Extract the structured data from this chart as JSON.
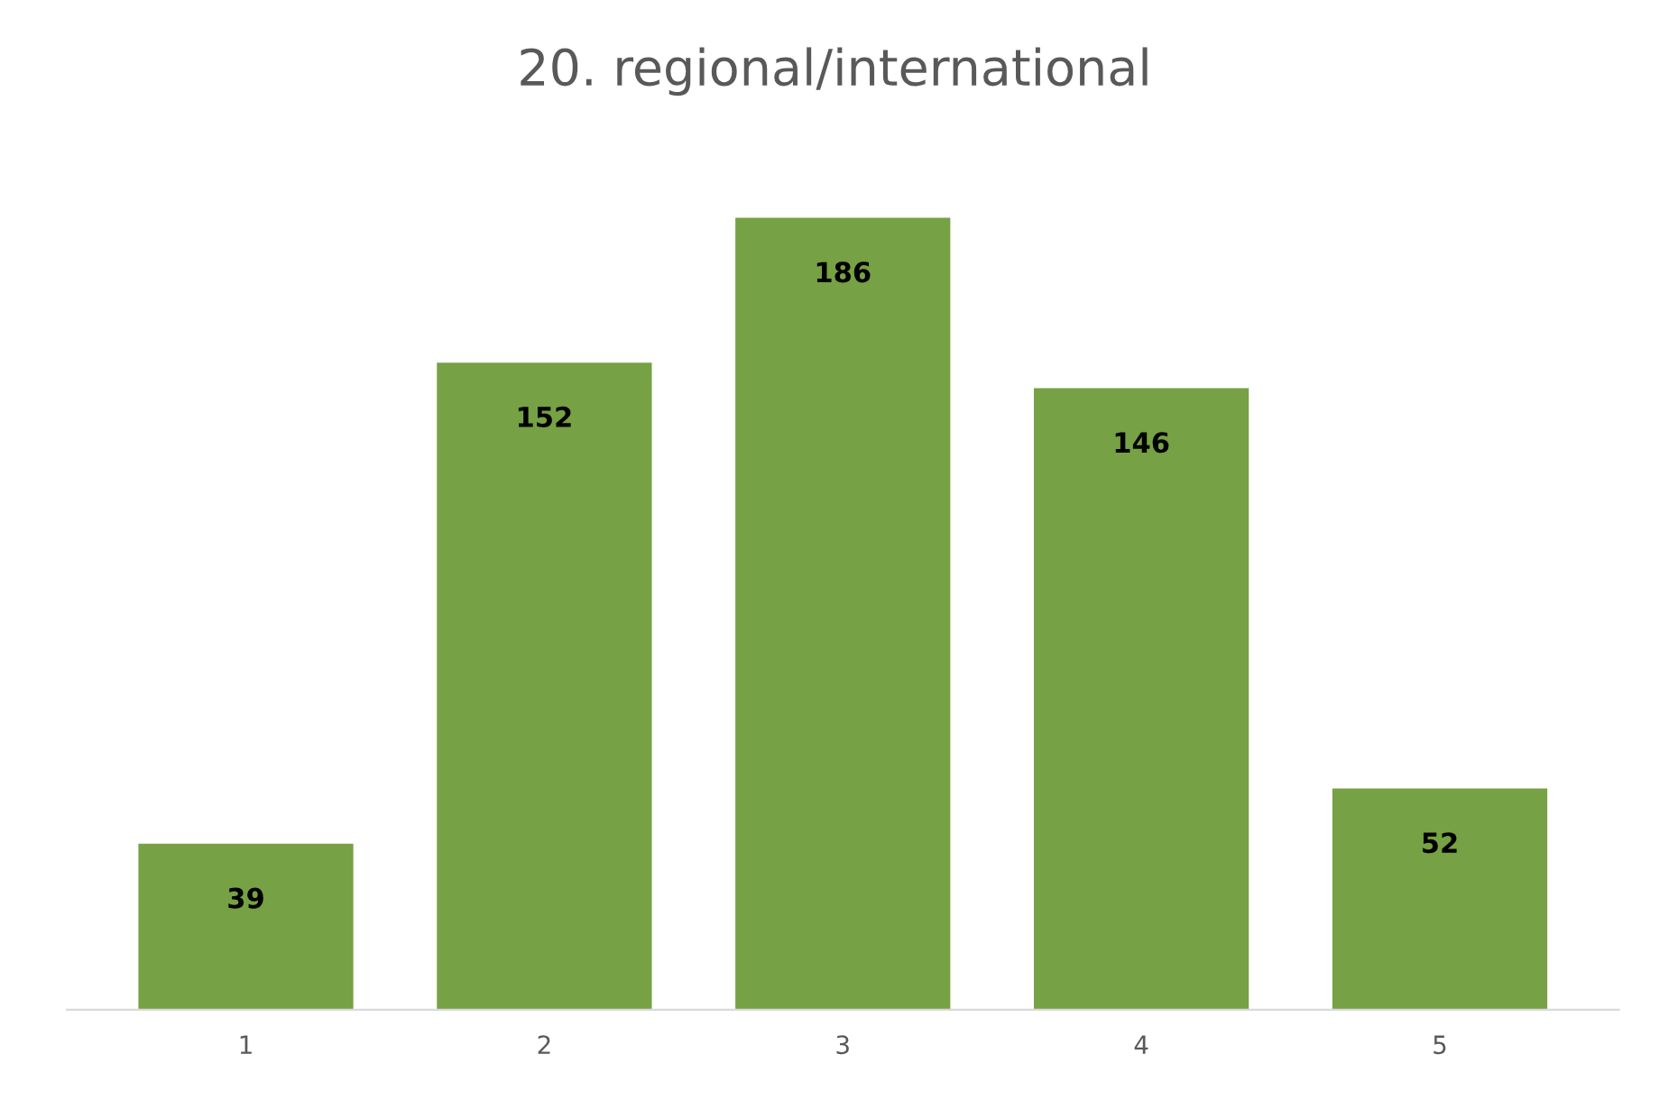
{
  "chart_data": {
    "type": "bar",
    "title": "20. regional/international",
    "categories": [
      "1",
      "2",
      "3",
      "4",
      "5"
    ],
    "values": [
      39,
      152,
      186,
      146,
      52
    ],
    "color": "#76a144",
    "tick_labels": "x",
    "data_labels": true,
    "grid": false,
    "legend": false
  }
}
